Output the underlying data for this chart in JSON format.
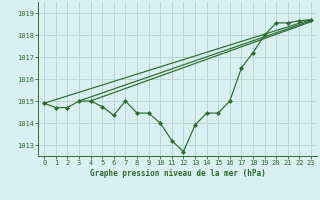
{
  "title": "Graphe pression niveau de la mer (hPa)",
  "background_color": "#d8f0f0",
  "grid_color": "#b8d8d8",
  "line_color": "#2d6a2d",
  "marker_color": "#2d6a2d",
  "xlim": [
    -0.5,
    23.5
  ],
  "ylim": [
    1012.5,
    1019.5
  ],
  "yticks": [
    1013,
    1014,
    1015,
    1016,
    1017,
    1018,
    1019
  ],
  "xticks": [
    0,
    1,
    2,
    3,
    4,
    5,
    6,
    7,
    8,
    9,
    10,
    11,
    12,
    13,
    14,
    15,
    16,
    17,
    18,
    19,
    20,
    21,
    22,
    23
  ],
  "main_series": [
    [
      0,
      1014.9
    ],
    [
      1,
      1014.7
    ],
    [
      2,
      1014.7
    ],
    [
      3,
      1015.0
    ],
    [
      4,
      1015.0
    ],
    [
      5,
      1014.75
    ],
    [
      6,
      1014.35
    ],
    [
      7,
      1015.0
    ],
    [
      8,
      1014.45
    ],
    [
      9,
      1014.45
    ],
    [
      10,
      1014.0
    ],
    [
      11,
      1013.2
    ],
    [
      12,
      1012.7
    ],
    [
      13,
      1013.9
    ],
    [
      14,
      1014.45
    ],
    [
      15,
      1014.45
    ],
    [
      16,
      1015.0
    ],
    [
      17,
      1016.5
    ],
    [
      18,
      1017.2
    ],
    [
      19,
      1018.0
    ],
    [
      20,
      1018.55
    ],
    [
      21,
      1018.55
    ],
    [
      22,
      1018.65
    ],
    [
      23,
      1018.7
    ]
  ],
  "trend_line1": [
    [
      0,
      1014.9
    ],
    [
      23,
      1018.7
    ]
  ],
  "trend_line2": [
    [
      3,
      1015.0
    ],
    [
      23,
      1018.65
    ]
  ],
  "trend_line3": [
    [
      4,
      1015.0
    ],
    [
      23,
      1018.6
    ]
  ]
}
